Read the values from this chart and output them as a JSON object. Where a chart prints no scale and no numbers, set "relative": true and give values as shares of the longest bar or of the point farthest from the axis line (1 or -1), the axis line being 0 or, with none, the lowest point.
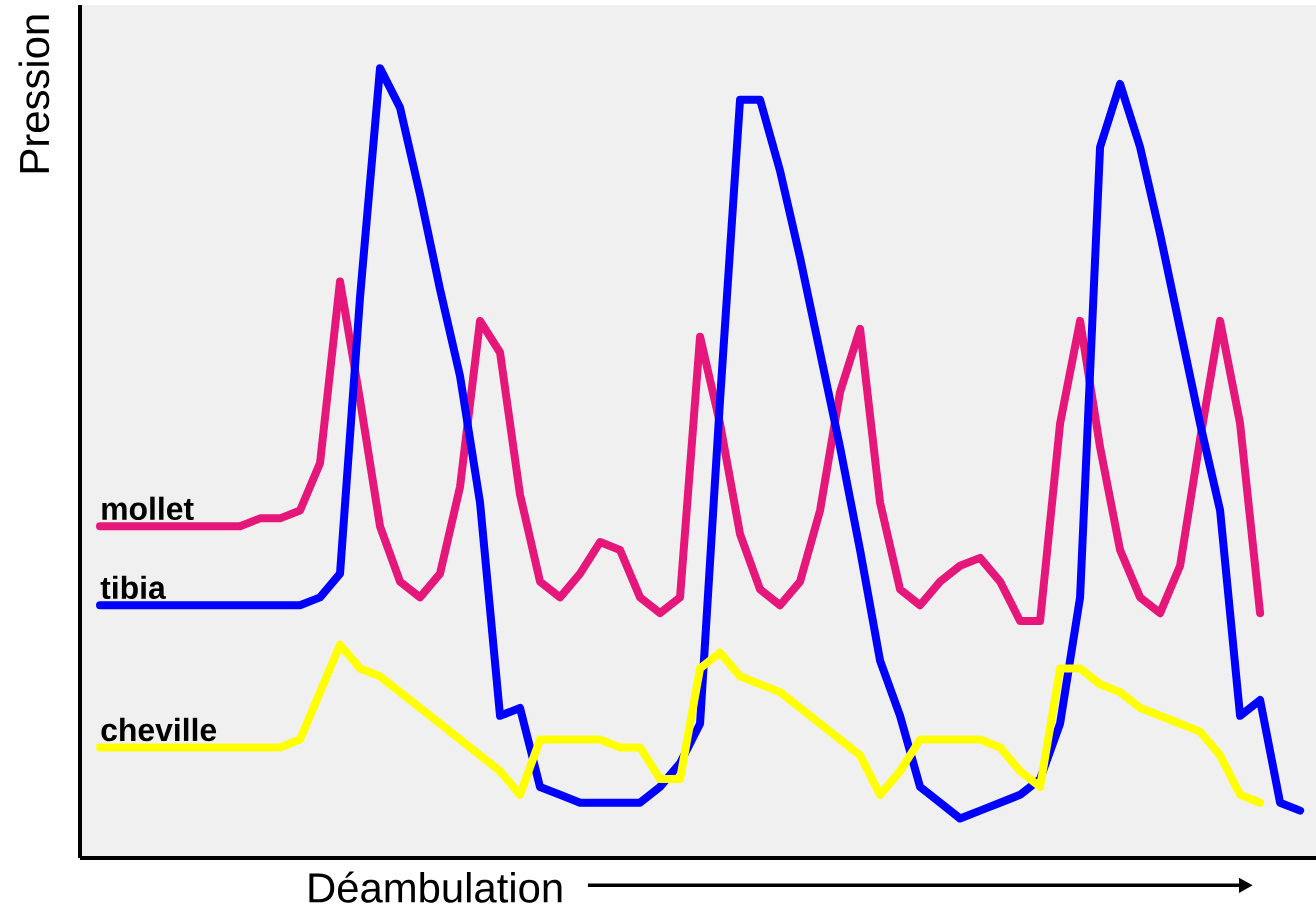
{
  "chart_data": {
    "type": "line",
    "relative": true,
    "xlabel": "Déambulation",
    "ylabel": "Pression",
    "marker": "none",
    "line_style": "solid",
    "categories": [
      null,
      null,
      null,
      null,
      null,
      null,
      null,
      null,
      null,
      null,
      null,
      null,
      null,
      null,
      null,
      null,
      null,
      null,
      null,
      null,
      null,
      null,
      null,
      null,
      null,
      null,
      null,
      null,
      null,
      null,
      null,
      null,
      null,
      null,
      null,
      null,
      null,
      null,
      null,
      null,
      null,
      null,
      null,
      null,
      null,
      null,
      null,
      null,
      null,
      null,
      null,
      null,
      null,
      null,
      null,
      null,
      null,
      null,
      null,
      null,
      null
    ],
    "series": [
      {
        "name": "mollet",
        "color": "#e6177a",
        "values": [
          0.42,
          0.42,
          0.42,
          0.42,
          0.42,
          0.42,
          0.42,
          0.42,
          0.43,
          0.43,
          0.44,
          0.5,
          0.73,
          0.58,
          0.42,
          0.35,
          0.33,
          0.36,
          0.47,
          0.68,
          0.64,
          0.46,
          0.35,
          0.33,
          0.36,
          0.4,
          0.39,
          0.33,
          0.31,
          0.33,
          0.66,
          0.55,
          0.41,
          0.34,
          0.32,
          0.35,
          0.44,
          0.59,
          0.67,
          0.45,
          0.34,
          0.32,
          0.35,
          0.37,
          0.38,
          0.35,
          0.3,
          0.3,
          0.55,
          0.68,
          0.52,
          0.39,
          0.33,
          0.31,
          0.37,
          0.53,
          0.68,
          0.55,
          0.31,
          null,
          null
        ]
      },
      {
        "name": "tibia",
        "color": "#0000ff",
        "values": [
          0.32,
          0.32,
          0.32,
          0.32,
          0.32,
          0.32,
          0.32,
          0.32,
          0.32,
          0.32,
          0.32,
          0.33,
          0.36,
          0.71,
          1.0,
          0.95,
          0.84,
          0.72,
          0.61,
          0.45,
          0.18,
          0.19,
          0.09,
          0.08,
          0.07,
          0.07,
          0.07,
          0.07,
          0.09,
          0.12,
          0.17,
          0.58,
          0.96,
          0.96,
          0.87,
          0.76,
          0.64,
          0.52,
          0.39,
          0.25,
          0.18,
          0.09,
          0.07,
          0.05,
          0.06,
          0.07,
          0.08,
          0.1,
          0.17,
          0.33,
          0.9,
          0.98,
          0.9,
          0.79,
          0.67,
          0.55,
          0.44,
          0.18,
          0.2,
          0.07,
          0.06
        ]
      },
      {
        "name": "cheville",
        "color": "#ffff00",
        "values": [
          0.14,
          0.14,
          0.14,
          0.14,
          0.14,
          0.14,
          0.14,
          0.14,
          0.14,
          0.14,
          0.15,
          0.21,
          0.27,
          0.24,
          0.23,
          0.21,
          0.19,
          0.17,
          0.15,
          0.13,
          0.11,
          0.08,
          0.15,
          0.15,
          0.15,
          0.15,
          0.14,
          0.14,
          0.1,
          0.1,
          0.24,
          0.26,
          0.23,
          0.22,
          0.21,
          0.19,
          0.17,
          0.15,
          0.13,
          0.08,
          0.11,
          0.15,
          0.15,
          0.15,
          0.15,
          0.14,
          0.11,
          0.09,
          0.24,
          0.24,
          0.22,
          0.21,
          0.19,
          0.18,
          0.17,
          0.16,
          0.13,
          0.08,
          0.07,
          null,
          null
        ]
      }
    ]
  }
}
